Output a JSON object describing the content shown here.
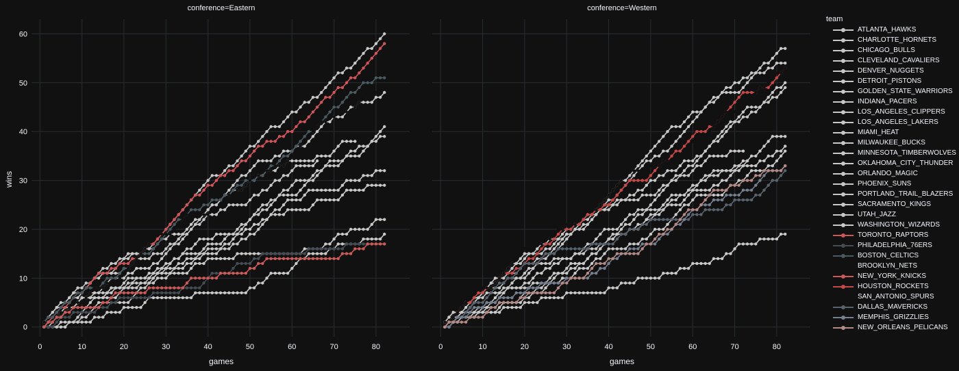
{
  "chart_data": {
    "type": "line",
    "xlabel": "games",
    "ylabel": "wins",
    "xlim": [
      -2,
      88
    ],
    "ylim": [
      -2,
      63
    ],
    "xticks": [
      0,
      10,
      20,
      30,
      40,
      50,
      60,
      70,
      80
    ],
    "yticks": [
      0,
      10,
      20,
      30,
      40,
      50,
      60
    ],
    "grid": true,
    "legend_title": "team",
    "legend_placement": "right",
    "facets": [
      {
        "label": "conference=Eastern",
        "final_wins": [
          60,
          58,
          51,
          49,
          48,
          41,
          39,
          32,
          29,
          22,
          19,
          17
        ]
      },
      {
        "label": "conference=Western",
        "final_wins": [
          57,
          54,
          53,
          50,
          49,
          39,
          37,
          36,
          33,
          32,
          19
        ]
      }
    ],
    "series": [
      {
        "name": "ATLANTA_HAWKS",
        "color": "#c8c8c8",
        "conference": "Eastern",
        "games": 82,
        "final": 60
      },
      {
        "name": "CHARLOTTE_HORNETS",
        "color": "#c8c8c8",
        "conference": "Eastern",
        "games": 82,
        "final": 48
      },
      {
        "name": "CHICAGO_BULLS",
        "color": "#c8c8c8",
        "conference": "Eastern",
        "games": 82,
        "final": 41
      },
      {
        "name": "CLEVELAND_CAVALIERS",
        "color": "#c8c8c8",
        "conference": "Eastern",
        "games": 82,
        "final": 39
      },
      {
        "name": "DENVER_NUGGETS",
        "color": "#c8c8c8",
        "conference": "Western",
        "games": 82,
        "final": 39
      },
      {
        "name": "DETROIT_PISTONS",
        "color": "#c8c8c8",
        "conference": "Eastern",
        "games": 82,
        "final": 32
      },
      {
        "name": "GOLDEN_STATE_WARRIORS",
        "color": "#c8c8c8",
        "conference": "Western",
        "games": 82,
        "final": 57
      },
      {
        "name": "INDIANA_PACERS",
        "color": "#c8c8c8",
        "conference": "Eastern",
        "games": 82,
        "final": 29
      },
      {
        "name": "LOS_ANGELES_CLIPPERS",
        "color": "#c8c8c8",
        "conference": "Western",
        "games": 82,
        "final": 54
      },
      {
        "name": "LOS_ANGELES_LAKERS",
        "color": "#c8c8c8",
        "conference": "Western",
        "games": 82,
        "final": 19
      },
      {
        "name": "MIAMI_HEAT",
        "color": "#c8c8c8",
        "conference": "Eastern",
        "games": 82,
        "final": 22
      },
      {
        "name": "MILWAUKEE_BUCKS",
        "color": "#c8c8c8",
        "conference": "Eastern",
        "games": 82,
        "final": 19
      },
      {
        "name": "MINNESOTA_TIMBERWOLVES",
        "color": "#c8c8c8",
        "conference": "Western",
        "games": 82,
        "final": 50
      },
      {
        "name": "OKLAHOMA_CITY_THUNDER",
        "color": "#c8c8c8",
        "conference": "Western",
        "games": 82,
        "final": 49
      },
      {
        "name": "ORLANDO_MAGIC",
        "color": "#c8c8c8",
        "conference": "Eastern",
        "games": 66,
        "final": 34
      },
      {
        "name": "PHOENIX_SUNS",
        "color": "#c8c8c8",
        "conference": "Western",
        "games": 82,
        "final": 37
      },
      {
        "name": "PORTLAND_TRAIL_BLAZERS",
        "color": "#c8c8c8",
        "conference": "Western",
        "games": 82,
        "final": 36
      },
      {
        "name": "SACRAMENTO_KINGS",
        "color": "#c8c8c8",
        "conference": "Western",
        "games": 73,
        "final": 34
      },
      {
        "name": "UTAH_JAZZ",
        "color": "#c8c8c8",
        "conference": "Western",
        "games": 72,
        "final": 36
      },
      {
        "name": "WASHINGTON_WIZARDS",
        "color": "#c8c8c8",
        "conference": "Eastern",
        "games": 75,
        "final": 38
      },
      {
        "name": "TORONTO_RAPTORS",
        "color": "#d0555a",
        "conference": "Eastern",
        "games": 82,
        "final": 58
      },
      {
        "name": "PHILADELPHIA_76ERS",
        "color": "#444c54",
        "conference": "Eastern",
        "games": 82,
        "final": 17
      },
      {
        "name": "BOSTON_CELTICS",
        "color": "#4a5a60",
        "conference": "Eastern",
        "games": 82,
        "final": 51
      },
      {
        "name": "BROOKLYN_NETS",
        "color": "#111111",
        "conference": "Eastern",
        "games": 82,
        "final": 49
      },
      {
        "name": "NEW_YORK_KNICKS",
        "color": "#cc5a5a",
        "conference": "Eastern",
        "games": 82,
        "final": 17
      },
      {
        "name": "HOUSTON_ROCKETS",
        "color": "#c84848",
        "conference": "Western",
        "games": 82,
        "final": 53
      },
      {
        "name": "SAN_ANTONIO_SPURS",
        "color": "#111111",
        "conference": "Western",
        "games": 82,
        "final": 53
      },
      {
        "name": "DALLAS_MAVERICKS",
        "color": "#59636e",
        "conference": "Western",
        "games": 82,
        "final": 32
      },
      {
        "name": "MEMPHIS_GRIZZLIES",
        "color": "#747f90",
        "conference": "Western",
        "games": 82,
        "final": 33
      },
      {
        "name": "NEW_ORLEANS_PELICANS",
        "color": "#b48a86",
        "conference": "Western",
        "games": 82,
        "final": 33
      }
    ]
  }
}
